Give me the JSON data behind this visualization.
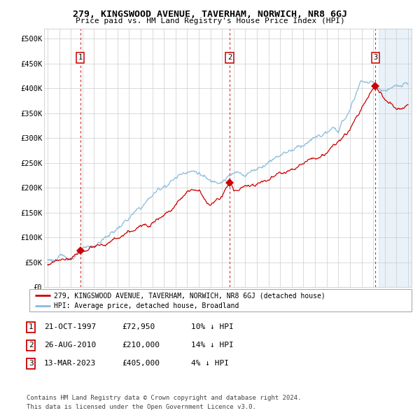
{
  "title": "279, KINGSWOOD AVENUE, TAVERHAM, NORWICH, NR8 6GJ",
  "subtitle": "Price paid vs. HM Land Registry's House Price Index (HPI)",
  "ylabel_ticks": [
    "£0",
    "£50K",
    "£100K",
    "£150K",
    "£200K",
    "£250K",
    "£300K",
    "£350K",
    "£400K",
    "£450K",
    "£500K"
  ],
  "ytick_values": [
    0,
    50000,
    100000,
    150000,
    200000,
    250000,
    300000,
    350000,
    400000,
    450000,
    500000
  ],
  "ylim": [
    0,
    520000
  ],
  "xlim_start": 1994.7,
  "xlim_end": 2026.3,
  "sale_dates": [
    1997.81,
    2010.65,
    2023.2
  ],
  "sale_prices": [
    72950,
    210000,
    405000
  ],
  "sale_labels": [
    "1",
    "2",
    "3"
  ],
  "legend_line1": "279, KINGSWOOD AVENUE, TAVERHAM, NORWICH, NR8 6GJ (detached house)",
  "legend_line2": "HPI: Average price, detached house, Broadland",
  "table_rows": [
    {
      "num": "1",
      "date": "21-OCT-1997",
      "price": "£72,950",
      "hpi": "10% ↓ HPI"
    },
    {
      "num": "2",
      "date": "26-AUG-2010",
      "price": "£210,000",
      "hpi": "14% ↓ HPI"
    },
    {
      "num": "3",
      "date": "13-MAR-2023",
      "price": "£405,000",
      "hpi": "4% ↓ HPI"
    }
  ],
  "footer1": "Contains HM Land Registry data © Crown copyright and database right 2024.",
  "footer2": "This data is licensed under the Open Government Licence v3.0.",
  "red_color": "#cc0000",
  "blue_color": "#88bbdd",
  "grid_color": "#cccccc",
  "shade_color": "#ddeeff",
  "background_color": "#ffffff",
  "hpi_knots_x": [
    1995,
    1996,
    1997,
    1998,
    1999,
    2000,
    2001,
    2002,
    2003,
    2004,
    2005,
    2006,
    2007,
    2008,
    2009,
    2010,
    2011,
    2012,
    2013,
    2014,
    2015,
    2016,
    2017,
    2018,
    2019,
    2020,
    2021,
    2022,
    2023,
    2024,
    2025,
    2026
  ],
  "hpi_knots_y": [
    55000,
    58000,
    62000,
    70000,
    82000,
    100000,
    118000,
    138000,
    158000,
    185000,
    205000,
    220000,
    238000,
    232000,
    210000,
    220000,
    228000,
    228000,
    240000,
    255000,
    270000,
    278000,
    290000,
    300000,
    310000,
    316000,
    355000,
    418000,
    408000,
    395000,
    400000,
    405000
  ],
  "prop_knots_x": [
    1995,
    1997,
    1997.81,
    2000,
    2003,
    2006,
    2007,
    2008,
    2009,
    2010,
    2010.65,
    2011,
    2013,
    2016,
    2019,
    2021,
    2022,
    2023,
    2023.2,
    2024,
    2025,
    2026
  ],
  "prop_knots_y": [
    45000,
    60000,
    72950,
    85000,
    120000,
    165000,
    195000,
    195000,
    165000,
    185000,
    210000,
    195000,
    210000,
    240000,
    270000,
    315000,
    360000,
    400000,
    405000,
    375000,
    360000,
    365000
  ]
}
